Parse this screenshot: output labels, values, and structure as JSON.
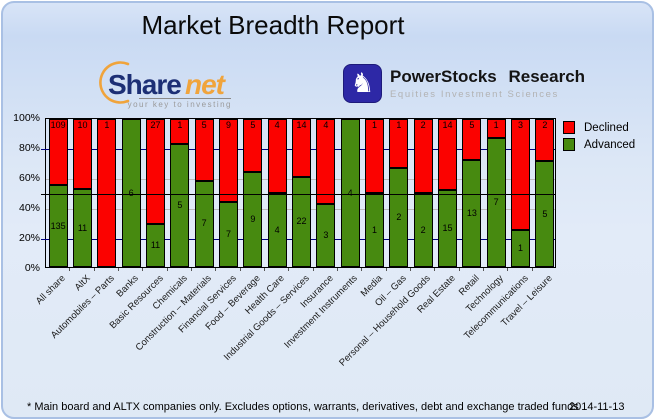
{
  "title": "Market Breadth Report",
  "logos": {
    "sharenet": {
      "word_share": "Share",
      "word_net": "net",
      "tagline": "your key to investing",
      "navy": "#1c2f75",
      "orange": "#f0a43c"
    },
    "powerstocks": {
      "title": "PowerStocks Research",
      "subtitle": "Equities Investment Sciences",
      "icon": "knight-chess-piece-icon",
      "icon_bg": "#2d28a6",
      "knight_glyph": "♞"
    }
  },
  "chart_data": {
    "type": "bar",
    "stacked": true,
    "units": "percent of companies (labels show counts)",
    "ylim": [
      0,
      100
    ],
    "grid": "on",
    "legend_position": "top-right",
    "y_ticks": [
      "100%",
      "80%",
      "60%",
      "40%",
      "20%",
      "0%"
    ],
    "categories": [
      "All share",
      "AltX",
      "Automobiles – Parts",
      "Banks",
      "Basic Resources",
      "Chemicals",
      "Construction – Materials",
      "Financial Services",
      "Food – Beverage",
      "Health Care",
      "Industrial Goods – Services",
      "Insurance",
      "Investment Instruments",
      "Media",
      "Oil – Gas",
      "Personal – Household Goods",
      "Real Estate",
      "Retail",
      "Technology",
      "Telecommunications",
      "Travel – Leisure"
    ],
    "series": [
      {
        "name": "Declined",
        "color": "#fb0200",
        "values": [
          109,
          10,
          1,
          0,
          27,
          1,
          5,
          9,
          5,
          4,
          14,
          4,
          0,
          1,
          1,
          2,
          14,
          5,
          1,
          3,
          2
        ]
      },
      {
        "name": "Advanced",
        "color": "#478a10",
        "values": [
          135,
          11,
          0,
          6,
          11,
          5,
          7,
          7,
          9,
          4,
          22,
          3,
          4,
          1,
          2,
          2,
          15,
          13,
          7,
          1,
          5
        ]
      }
    ],
    "gridlines": [
      {
        "pct": 80,
        "color": "#00007e",
        "tick": true,
        "front": false
      },
      {
        "pct": 60,
        "color": "#bbbbbb",
        "tick": false,
        "front": false
      },
      {
        "pct": 50,
        "color": "#000000",
        "tick": true,
        "front": true
      },
      {
        "pct": 40,
        "color": "#bbbbbb",
        "tick": false,
        "front": false
      },
      {
        "pct": 20,
        "color": "#00007e",
        "tick": true,
        "front": false
      }
    ]
  },
  "footer": {
    "note": "* Main board and ALTX companies only. Excludes options, warrants, derivatives, debt and exchange traded funds",
    "date": "2014-11-13"
  }
}
